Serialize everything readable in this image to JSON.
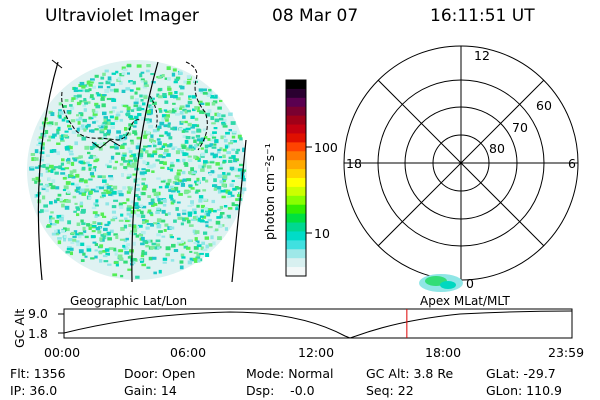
{
  "header": {
    "title": "Ultraviolet Imager",
    "date": "08 Mar 07",
    "time": "16:11:51 UT"
  },
  "colorbar": {
    "unit_label": "photon cm⁻²s⁻¹",
    "ticks": [
      "100",
      "10"
    ],
    "colors": [
      "#000000",
      "#2a0030",
      "#5a0050",
      "#7a0030",
      "#a00018",
      "#c40010",
      "#e01000",
      "#ff4400",
      "#ff7a00",
      "#ffaa00",
      "#ffd400",
      "#ffff00",
      "#ccff00",
      "#88ff00",
      "#33ee00",
      "#00e040",
      "#00d890",
      "#00dcc8",
      "#40e0e0",
      "#9ee8e8",
      "#d8f0f0",
      "#f4f8f8"
    ]
  },
  "polar": {
    "mlt_labels": {
      "top": "12",
      "left": "18",
      "right": "6",
      "bottom": "0"
    },
    "lat_labels": [
      "60",
      "70",
      "80"
    ]
  },
  "altitude_plot": {
    "ylabel": "GC Alt",
    "yticks": [
      "9.0",
      "1.8"
    ],
    "left_title": "Geographic Lat/Lon",
    "right_title": "Apex MLat/MLT",
    "xticks": [
      "00:00",
      "06:00",
      "12:00",
      "18:00",
      "23:59"
    ],
    "current_time_fraction": 0.6749
  },
  "status": {
    "flt": "Flt: 1356",
    "ip": "IP: 36.0",
    "door": "Door: Open",
    "gain": "Gain: 14",
    "mode": "Mode: Normal",
    "dsp": "Dsp:    -0.0",
    "gc_alt": "GC Alt: 3.8 Re",
    "seq": "Seq: 22",
    "glat": "GLat: -29.7",
    "glon": "GLon: 110.9"
  }
}
